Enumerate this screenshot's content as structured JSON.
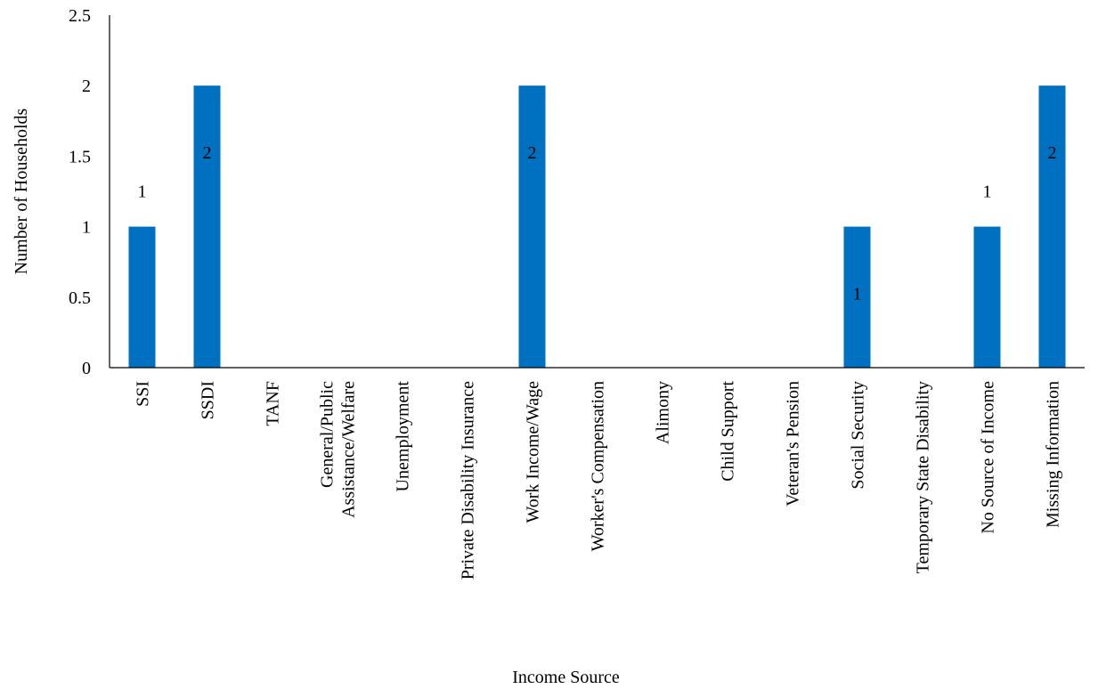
{
  "chart_data": {
    "type": "bar",
    "title": "",
    "xlabel": "Income Source",
    "ylabel": "Number of Households",
    "ylim": [
      0,
      2.5
    ],
    "yticks": [
      "0",
      "0.5",
      "1",
      "1.5",
      "2",
      "2.5"
    ],
    "grid": false,
    "legend": "none",
    "bar_color": "#0070C0",
    "categories": [
      [
        "SSI"
      ],
      [
        "SSDI"
      ],
      [
        "TANF"
      ],
      [
        "General/Public",
        "Assistance/Welfare"
      ],
      [
        "Unemployment"
      ],
      [
        "Private Disability Insurance"
      ],
      [
        "Work Income/Wage"
      ],
      [
        "Worker's Compensation"
      ],
      [
        "Alimony"
      ],
      [
        "Child Support"
      ],
      [
        "Veteran's Pension"
      ],
      [
        "Social Security"
      ],
      [
        "Temporary State Disability"
      ],
      [
        "No Source of Income"
      ],
      [
        "Missing Information"
      ]
    ],
    "values": [
      1,
      2,
      0,
      0,
      0,
      0,
      2,
      0,
      0,
      0,
      0,
      1,
      0,
      1,
      2
    ],
    "data_labels": [
      "1",
      "2",
      "",
      "",
      "",
      "",
      "2",
      "",
      "",
      "",
      "",
      "1",
      "",
      "1",
      "2"
    ],
    "data_label_positions": [
      "outside",
      "inside",
      "",
      "",
      "",
      "",
      "inside",
      "",
      "",
      "",
      "",
      "inside",
      "",
      "outside",
      "inside"
    ]
  }
}
